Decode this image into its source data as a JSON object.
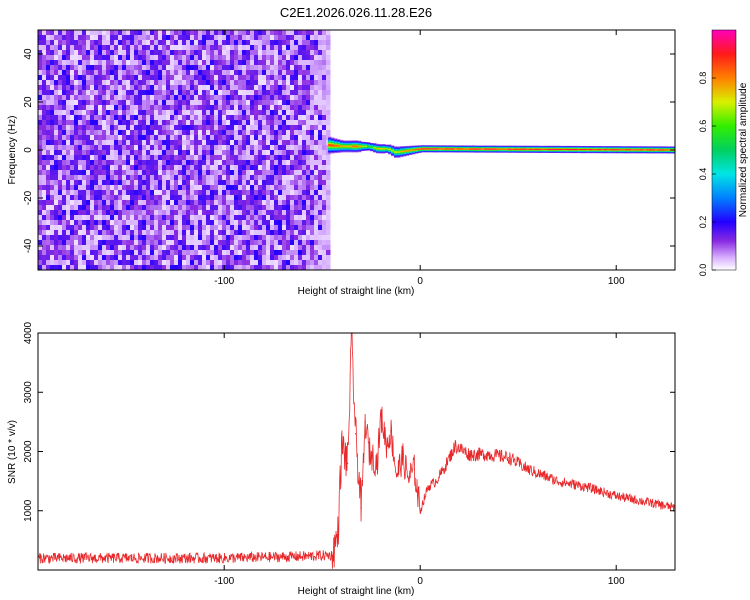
{
  "title": "C2E1.2026.026.11.28.E26",
  "chart_data": [
    {
      "type": "heatmap",
      "xlabel": "Height of straight line (km)",
      "ylabel": "Frequency (Hz)",
      "xlim": [
        -195,
        130
      ],
      "ylim": [
        -50,
        50
      ],
      "xticks": [
        -100,
        0,
        100
      ],
      "yticks": [
        -40,
        -20,
        0,
        20,
        40
      ],
      "noise_region": {
        "x_range": [
          -195,
          -47
        ],
        "y_range": [
          -50,
          50
        ],
        "amplitude_range": [
          0.0,
          0.2
        ]
      },
      "signal_band": [
        {
          "x": -47,
          "center": 2,
          "halfwidth": 3.5,
          "amplitude": 0.9
        },
        {
          "x": -40,
          "center": 1.5,
          "halfwidth": 2.5,
          "amplitude": 0.75
        },
        {
          "x": -33,
          "center": 1.5,
          "halfwidth": 2.5,
          "amplitude": 0.85
        },
        {
          "x": -27,
          "center": 1.5,
          "halfwidth": 2.0,
          "amplitude": 0.6
        },
        {
          "x": -22,
          "center": 0.5,
          "halfwidth": 2.0,
          "amplitude": 0.8
        },
        {
          "x": -17,
          "center": 0.5,
          "halfwidth": 2.0,
          "amplitude": 0.7
        },
        {
          "x": -13,
          "center": -1.0,
          "halfwidth": 2.5,
          "amplitude": 0.7
        },
        {
          "x": 0,
          "center": 0.5,
          "halfwidth": 1.5,
          "amplitude": 0.95
        },
        {
          "x": 130,
          "center": 0.0,
          "halfwidth": 1.5,
          "amplitude": 0.95
        }
      ],
      "colorbar": {
        "label": "Normalized spectral amplitude",
        "range": [
          0,
          1
        ],
        "ticks": [
          0.0,
          0.2,
          0.4,
          0.6,
          0.8
        ]
      },
      "grid": false
    },
    {
      "type": "line",
      "xlabel": "Height of straight line (km)",
      "ylabel": "SNR (10 * v/v)",
      "xlim": [
        -195,
        130
      ],
      "ylim": [
        0,
        4000
      ],
      "xticks": [
        -100,
        0,
        100
      ],
      "yticks": [
        1000,
        2000,
        3000,
        4000
      ],
      "series": [
        {
          "color": "#e8292b",
          "x": [
            -195,
            -150,
            -100,
            -60,
            -45,
            -42,
            -40,
            -37,
            -35,
            -33,
            -30,
            -28,
            -26,
            -22,
            -20,
            -17,
            -15,
            -12,
            -9,
            -6,
            -3,
            0,
            4,
            8,
            12,
            18,
            25,
            35,
            45,
            55,
            70,
            85,
            100,
            115,
            130
          ],
          "values": [
            200,
            200,
            200,
            230,
            250,
            600,
            2100,
            1800,
            3950,
            2300,
            1050,
            2500,
            2000,
            1800,
            2600,
            2100,
            2350,
            1600,
            1900,
            1550,
            1700,
            1000,
            1400,
            1500,
            1700,
            2100,
            1950,
            1950,
            1900,
            1700,
            1500,
            1400,
            1250,
            1150,
            1050
          ]
        }
      ],
      "grid": false
    }
  ]
}
